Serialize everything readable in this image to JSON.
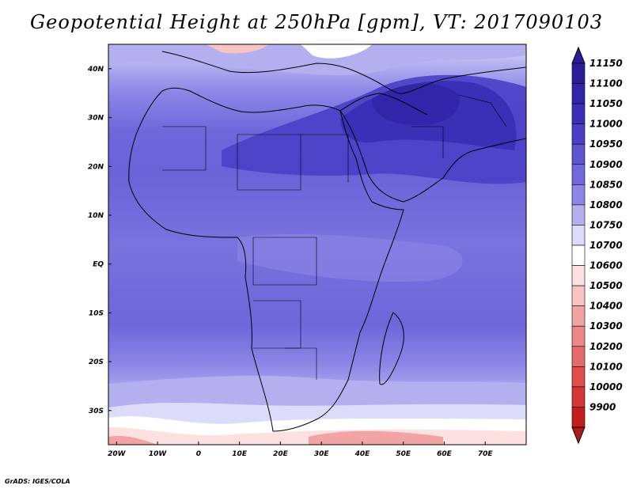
{
  "title": "Geopotential Height at 250hPa [gpm], VT: 2017090103",
  "credit": "GrADS: IGES/COLA",
  "map": {
    "lon_ticks": [
      {
        "value": -20,
        "label": "20W"
      },
      {
        "value": -10,
        "label": "10W"
      },
      {
        "value": 0,
        "label": "0"
      },
      {
        "value": 10,
        "label": "10E"
      },
      {
        "value": 20,
        "label": "20E"
      },
      {
        "value": 30,
        "label": "30E"
      },
      {
        "value": 40,
        "label": "40E"
      },
      {
        "value": 50,
        "label": "50E"
      },
      {
        "value": 60,
        "label": "60E"
      },
      {
        "value": 70,
        "label": "70E"
      }
    ],
    "lat_ticks": [
      {
        "value": 40,
        "label": "40N"
      },
      {
        "value": 30,
        "label": "30N"
      },
      {
        "value": 20,
        "label": "20N"
      },
      {
        "value": 10,
        "label": "10N"
      },
      {
        "value": 0,
        "label": "EQ"
      },
      {
        "value": -10,
        "label": "10S"
      },
      {
        "value": -20,
        "label": "20S"
      },
      {
        "value": -30,
        "label": "30S"
      }
    ],
    "lon_range": [
      -22,
      80
    ],
    "lat_range": [
      -37,
      45
    ]
  },
  "colorbar": {
    "levels": [
      {
        "label": "11150",
        "color": "#2a1e9a"
      },
      {
        "label": "11100",
        "color": "#3225aa"
      },
      {
        "label": "11050",
        "color": "#3b2fb8"
      },
      {
        "label": "11000",
        "color": "#4a3fc6"
      },
      {
        "label": "10950",
        "color": "#5e55d2"
      },
      {
        "label": "10900",
        "color": "#7268dc"
      },
      {
        "label": "10850",
        "color": "#8d86e6"
      },
      {
        "label": "10800",
        "color": "#b4b0f0"
      },
      {
        "label": "10750",
        "color": "#dcdcfa"
      },
      {
        "label": "10700",
        "color": "#ffffff"
      },
      {
        "label": "10600",
        "color": "#fde0e0"
      },
      {
        "label": "10500",
        "color": "#f8c3c3"
      },
      {
        "label": "10400",
        "color": "#f2a4a4"
      },
      {
        "label": "10300",
        "color": "#ec8888"
      },
      {
        "label": "10200",
        "color": "#e56b6b"
      },
      {
        "label": "10100",
        "color": "#e04e4e"
      },
      {
        "label": "10000",
        "color": "#d63535"
      },
      {
        "label": "9900",
        "color": "#c21e1e"
      }
    ],
    "top_cap_color": "#2a1e9a",
    "bottom_cap_color": "#b01a1a"
  }
}
